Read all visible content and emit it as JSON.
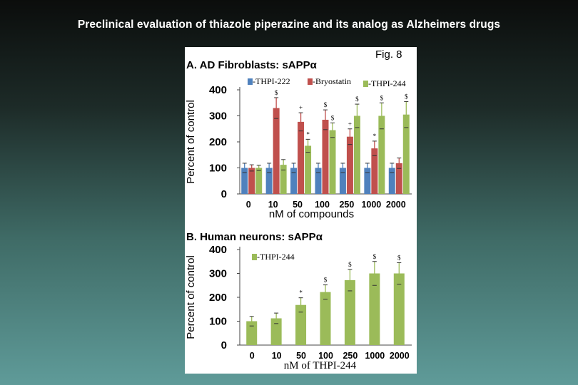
{
  "slide": {
    "title": "Preclinical evaluation of thiazole piperazine and its analog as Alzheimers drugs",
    "figure_label": "Fig. 8"
  },
  "colors": {
    "background_top": "#0b0d0c",
    "background_bottom": "#5f9b99",
    "thpi222": "#4f81bd",
    "bryostatin": "#c0504d",
    "thpi244": "#9bbb59"
  },
  "chart_data": [
    {
      "type": "bar",
      "title": "A. AD Fibroblasts: sAPPα",
      "xlabel": "nM of compounds",
      "ylabel": "Percent of control",
      "ylim": [
        0,
        400
      ],
      "yticks": [
        "0",
        "100",
        "200",
        "300",
        "400"
      ],
      "categories": [
        "0",
        "10",
        "50",
        "100",
        "250",
        "1000",
        "2000"
      ],
      "series": [
        {
          "name": "-THPI-222",
          "values": [
            100,
            100,
            100,
            100,
            100,
            100,
            100
          ],
          "errors": [
            18,
            18,
            18,
            18,
            18,
            18,
            18
          ],
          "marks": [
            "",
            "",
            "",
            "",
            "",
            "",
            ""
          ]
        },
        {
          "name": "-Bryostatin",
          "values": [
            100,
            330,
            277,
            285,
            220,
            175,
            118
          ],
          "errors": [
            12,
            40,
            35,
            38,
            30,
            28,
            20
          ],
          "marks": [
            "",
            "$",
            "+",
            "$",
            "+",
            "*",
            ""
          ]
        },
        {
          "name": "-THPI-244",
          "values": [
            100,
            112,
            185,
            245,
            300,
            300,
            305
          ],
          "errors": [
            10,
            20,
            25,
            28,
            45,
            50,
            50
          ],
          "marks": [
            "",
            "",
            "*",
            "$",
            "$",
            "$",
            "$"
          ]
        }
      ],
      "legend": "top"
    },
    {
      "type": "bar",
      "title": "B. Human neurons: sAPPα",
      "xlabel": "nM of THPI-244",
      "ylabel": "Percent of control",
      "ylim": [
        0,
        400
      ],
      "yticks": [
        "0",
        "100",
        "200",
        "300",
        "400"
      ],
      "categories": [
        "0",
        "10",
        "50",
        "100",
        "250",
        "1000",
        "2000"
      ],
      "series": [
        {
          "name": "-THPI-244",
          "values": [
            100,
            112,
            168,
            222,
            272,
            300,
            300
          ],
          "errors": [
            20,
            22,
            30,
            30,
            45,
            50,
            45
          ],
          "marks": [
            "",
            "",
            "*",
            "$",
            "$",
            "$",
            "$"
          ]
        }
      ],
      "legend": "top-left"
    }
  ]
}
